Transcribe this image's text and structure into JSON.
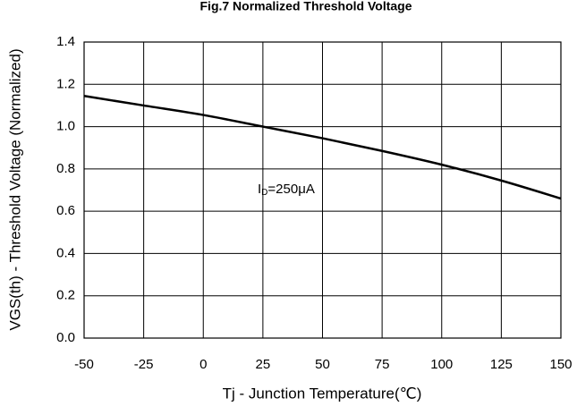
{
  "chart_data": {
    "type": "line",
    "title": "Fig.7 Normalized Threshold Voltage",
    "xlabel": "Tj - Junction Temperature(℃)",
    "ylabel": "VGS(th) - Threshold Voltage (Normalized)",
    "annotation": [
      "I",
      "D",
      "=250μA"
    ],
    "x": [
      -50,
      -25,
      0,
      25,
      50,
      75,
      100,
      125,
      150
    ],
    "series": [
      {
        "color": "#000000",
        "values": [
          1.145,
          1.1,
          1.055,
          1.0,
          0.945,
          0.885,
          0.82,
          0.745,
          0.66
        ]
      }
    ],
    "xlim": [
      -50,
      150
    ],
    "xticks": [
      -50,
      -25,
      0,
      25,
      50,
      75,
      100,
      125,
      150
    ],
    "ylim": [
      0,
      1.4
    ],
    "yticks": [
      {
        "value": 0,
        "label": "0.0"
      },
      0.2,
      0.4,
      0.6,
      0.8,
      {
        "value": 1,
        "label": "1.0"
      },
      1.2,
      1.4
    ],
    "grid": true
  }
}
